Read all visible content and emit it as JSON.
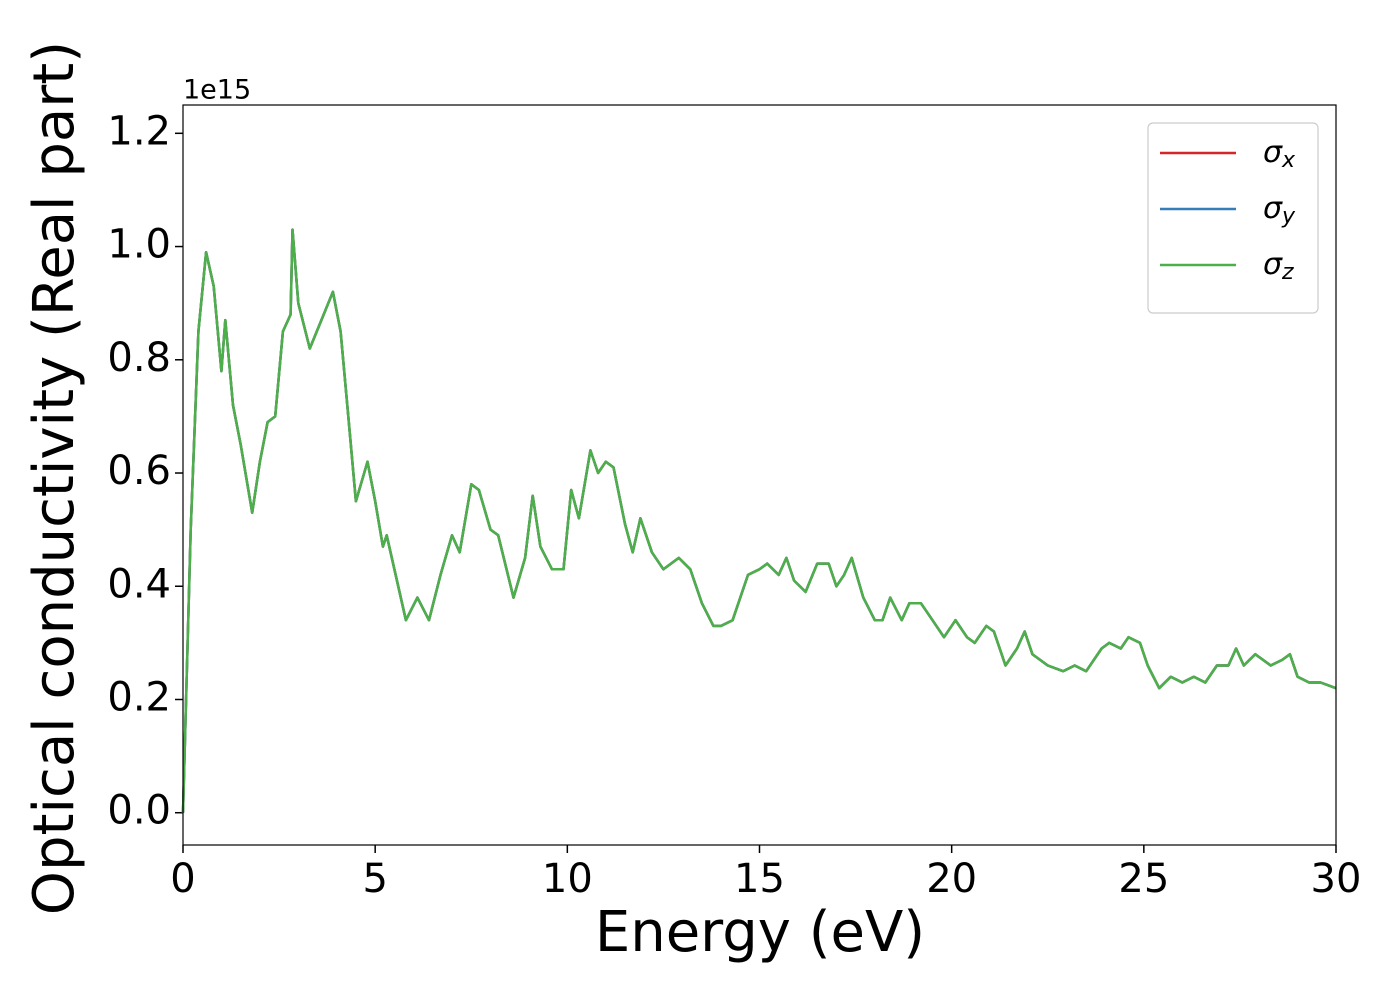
{
  "chart_data": {
    "type": "line",
    "x_label": "Energy (eV)",
    "y_label": "Optical conductivity (Real part)",
    "y_offset_label": "1e15",
    "x": [
      0,
      0.2,
      0.4,
      0.6,
      0.8,
      1.0,
      1.1,
      1.3,
      1.5,
      1.8,
      2.0,
      2.2,
      2.4,
      2.6,
      2.8,
      2.85,
      3.0,
      3.3,
      3.6,
      3.9,
      4.1,
      4.3,
      4.5,
      4.8,
      5.0,
      5.2,
      5.3,
      5.5,
      5.8,
      6.1,
      6.4,
      6.7,
      7.0,
      7.2,
      7.5,
      7.7,
      8.0,
      8.2,
      8.6,
      8.9,
      9.1,
      9.3,
      9.6,
      9.9,
      10.1,
      10.3,
      10.6,
      10.8,
      11.0,
      11.2,
      11.5,
      11.7,
      11.9,
      12.2,
      12.5,
      12.9,
      13.2,
      13.5,
      13.8,
      14.0,
      14.3,
      14.7,
      15.0,
      15.2,
      15.5,
      15.7,
      15.9,
      16.2,
      16.5,
      16.8,
      17.0,
      17.2,
      17.4,
      17.7,
      18.0,
      18.2,
      18.4,
      18.7,
      18.9,
      19.2,
      19.5,
      19.8,
      20.1,
      20.4,
      20.6,
      20.9,
      21.1,
      21.4,
      21.7,
      21.9,
      22.1,
      22.5,
      22.9,
      23.2,
      23.5,
      23.9,
      24.1,
      24.4,
      24.6,
      24.9,
      25.1,
      25.4,
      25.7,
      26.0,
      26.3,
      26.6,
      26.9,
      27.2,
      27.4,
      27.6,
      27.9,
      28.3,
      28.6,
      28.8,
      29.0,
      29.3,
      29.6,
      30.0
    ],
    "series": [
      {
        "name": "σx",
        "color": "#d62728",
        "values": [
          0,
          0.5,
          0.85,
          0.99,
          0.93,
          0.78,
          0.87,
          0.72,
          0.65,
          0.53,
          0.62,
          0.69,
          0.7,
          0.85,
          0.88,
          1.03,
          0.9,
          0.82,
          0.87,
          0.92,
          0.85,
          0.7,
          0.55,
          0.62,
          0.55,
          0.47,
          0.49,
          0.43,
          0.34,
          0.38,
          0.34,
          0.42,
          0.49,
          0.46,
          0.58,
          0.57,
          0.5,
          0.49,
          0.38,
          0.45,
          0.56,
          0.47,
          0.43,
          0.43,
          0.57,
          0.52,
          0.64,
          0.6,
          0.62,
          0.61,
          0.51,
          0.46,
          0.52,
          0.46,
          0.43,
          0.45,
          0.43,
          0.37,
          0.33,
          0.33,
          0.34,
          0.42,
          0.43,
          0.44,
          0.42,
          0.45,
          0.41,
          0.39,
          0.44,
          0.44,
          0.4,
          0.42,
          0.45,
          0.38,
          0.34,
          0.34,
          0.38,
          0.34,
          0.37,
          0.37,
          0.34,
          0.31,
          0.34,
          0.31,
          0.3,
          0.33,
          0.32,
          0.26,
          0.29,
          0.32,
          0.28,
          0.26,
          0.25,
          0.26,
          0.25,
          0.29,
          0.3,
          0.29,
          0.31,
          0.3,
          0.26,
          0.22,
          0.24,
          0.23,
          0.24,
          0.23,
          0.26,
          0.26,
          0.29,
          0.26,
          0.28,
          0.26,
          0.27,
          0.28,
          0.24,
          0.23,
          0.23,
          0.22
        ]
      },
      {
        "name": "σy",
        "color": "#377eb8",
        "values": [
          0,
          0.5,
          0.85,
          0.99,
          0.93,
          0.78,
          0.87,
          0.72,
          0.65,
          0.53,
          0.62,
          0.69,
          0.7,
          0.85,
          0.88,
          1.03,
          0.9,
          0.82,
          0.87,
          0.92,
          0.85,
          0.7,
          0.55,
          0.62,
          0.55,
          0.47,
          0.49,
          0.43,
          0.34,
          0.38,
          0.34,
          0.42,
          0.49,
          0.46,
          0.58,
          0.57,
          0.5,
          0.49,
          0.38,
          0.45,
          0.56,
          0.47,
          0.43,
          0.43,
          0.57,
          0.52,
          0.64,
          0.6,
          0.62,
          0.61,
          0.51,
          0.46,
          0.52,
          0.46,
          0.43,
          0.45,
          0.43,
          0.37,
          0.33,
          0.33,
          0.34,
          0.42,
          0.43,
          0.44,
          0.42,
          0.45,
          0.41,
          0.39,
          0.44,
          0.44,
          0.4,
          0.42,
          0.45,
          0.38,
          0.34,
          0.34,
          0.38,
          0.34,
          0.37,
          0.37,
          0.34,
          0.31,
          0.34,
          0.31,
          0.3,
          0.33,
          0.32,
          0.26,
          0.29,
          0.32,
          0.28,
          0.26,
          0.25,
          0.26,
          0.25,
          0.29,
          0.3,
          0.29,
          0.31,
          0.3,
          0.26,
          0.22,
          0.24,
          0.23,
          0.24,
          0.23,
          0.26,
          0.26,
          0.29,
          0.26,
          0.28,
          0.26,
          0.27,
          0.28,
          0.24,
          0.23,
          0.23,
          0.22
        ]
      },
      {
        "name": "σz",
        "color": "#4daf4a",
        "values": [
          0,
          0.5,
          0.85,
          0.99,
          0.93,
          0.78,
          0.87,
          0.72,
          0.65,
          0.53,
          0.62,
          0.69,
          0.7,
          0.85,
          0.88,
          1.03,
          0.9,
          0.82,
          0.87,
          0.92,
          0.85,
          0.7,
          0.55,
          0.62,
          0.55,
          0.47,
          0.49,
          0.43,
          0.34,
          0.38,
          0.34,
          0.42,
          0.49,
          0.46,
          0.58,
          0.57,
          0.5,
          0.49,
          0.38,
          0.45,
          0.56,
          0.47,
          0.43,
          0.43,
          0.57,
          0.52,
          0.64,
          0.6,
          0.62,
          0.61,
          0.51,
          0.46,
          0.52,
          0.46,
          0.43,
          0.45,
          0.43,
          0.37,
          0.33,
          0.33,
          0.34,
          0.42,
          0.43,
          0.44,
          0.42,
          0.45,
          0.41,
          0.39,
          0.44,
          0.44,
          0.4,
          0.42,
          0.45,
          0.38,
          0.34,
          0.34,
          0.38,
          0.34,
          0.37,
          0.37,
          0.34,
          0.31,
          0.34,
          0.31,
          0.3,
          0.33,
          0.32,
          0.26,
          0.29,
          0.32,
          0.28,
          0.26,
          0.25,
          0.26,
          0.25,
          0.29,
          0.3,
          0.29,
          0.31,
          0.3,
          0.26,
          0.22,
          0.24,
          0.23,
          0.24,
          0.23,
          0.26,
          0.26,
          0.29,
          0.26,
          0.28,
          0.26,
          0.27,
          0.28,
          0.24,
          0.23,
          0.23,
          0.22
        ]
      }
    ],
    "xlim": [
      0,
      30
    ],
    "xticks": [
      0,
      5,
      10,
      15,
      20,
      25,
      30
    ],
    "ylim": [
      -0.057,
      1.25
    ],
    "yticks": [
      {
        "value": 0,
        "label": "0.0"
      },
      0.2,
      0.4,
      0.6,
      0.8,
      {
        "value": 1,
        "label": "1.0"
      },
      1.2
    ],
    "legend": "upper right",
    "grid": false
  }
}
